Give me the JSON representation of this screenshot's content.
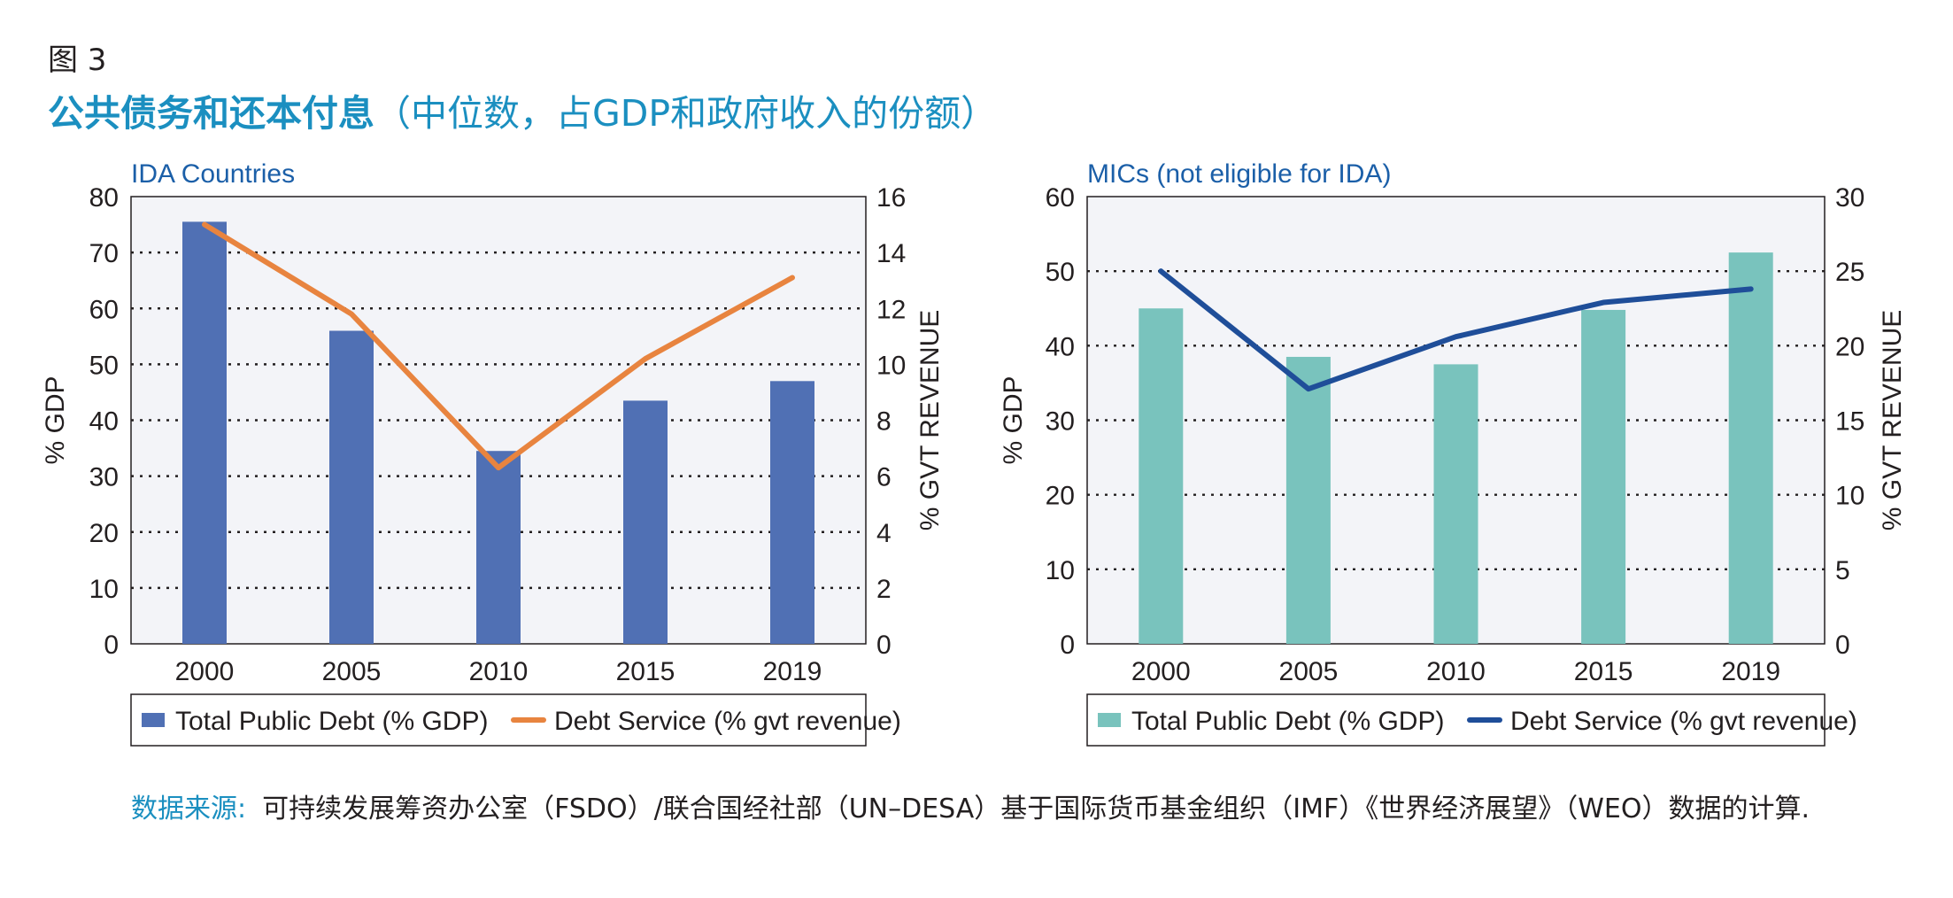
{
  "figure_label": "图 3",
  "title_main": "公共债务和还本付息",
  "title_sub": "（中位数，占GDP和政府收入的份额）",
  "source_label": "数据来源:",
  "source_text": "可持续发展筹资办公室（FSDO）/联合国经社部（UN–DESA）基于国际货币基金组织（IMF）《世界经济展望》（WEO）数据的计算.",
  "chart_data": [
    {
      "type": "bar",
      "title": "IDA Countries",
      "categories": [
        "2000",
        "2005",
        "2010",
        "2015",
        "2019"
      ],
      "ylabel": "% GDP",
      "y2label": "% GVT REVENUE",
      "ylim": [
        0,
        80
      ],
      "y2lim": [
        0,
        16
      ],
      "yticks": [
        "0",
        "10",
        "20",
        "30",
        "40",
        "50",
        "60",
        "70",
        "80"
      ],
      "y2ticks": [
        "0",
        "2",
        "4",
        "6",
        "8",
        "10",
        "12",
        "14",
        "16"
      ],
      "grid": true,
      "legend_position": "bottom",
      "series": [
        {
          "name": "Total Public Debt (% GDP)",
          "kind": "bar",
          "axis": "left",
          "color": "#5070b4",
          "values": [
            75.5,
            56,
            34.5,
            43.5,
            47
          ]
        },
        {
          "name": "Debt Service (% gvt revenue)",
          "kind": "line",
          "axis": "right",
          "color": "#e8843f",
          "values": [
            15,
            11.8,
            6.3,
            10.2,
            13.1
          ]
        }
      ]
    },
    {
      "type": "bar",
      "title": "MICs (not eligible for IDA)",
      "categories": [
        "2000",
        "2005",
        "2010",
        "2015",
        "2019"
      ],
      "ylabel": "% GDP",
      "y2label": "% GVT REVENUE",
      "ylim": [
        0,
        60
      ],
      "y2lim": [
        0,
        30
      ],
      "yticks": [
        "0",
        "10",
        "20",
        "30",
        "40",
        "50",
        "60"
      ],
      "y2ticks": [
        "0",
        "5",
        "10",
        "15",
        "20",
        "25",
        "30"
      ],
      "grid": true,
      "legend_position": "bottom",
      "series": [
        {
          "name": "Total Public Debt (% GDP)",
          "kind": "bar",
          "axis": "left",
          "color": "#79c3bd",
          "values": [
            45,
            38.5,
            37.5,
            44.8,
            52.5
          ]
        },
        {
          "name": "Debt Service (% gvt revenue)",
          "kind": "line",
          "axis": "right",
          "color": "#1f4e99",
          "values": [
            25,
            17.1,
            20.6,
            22.9,
            23.8
          ]
        }
      ]
    }
  ]
}
